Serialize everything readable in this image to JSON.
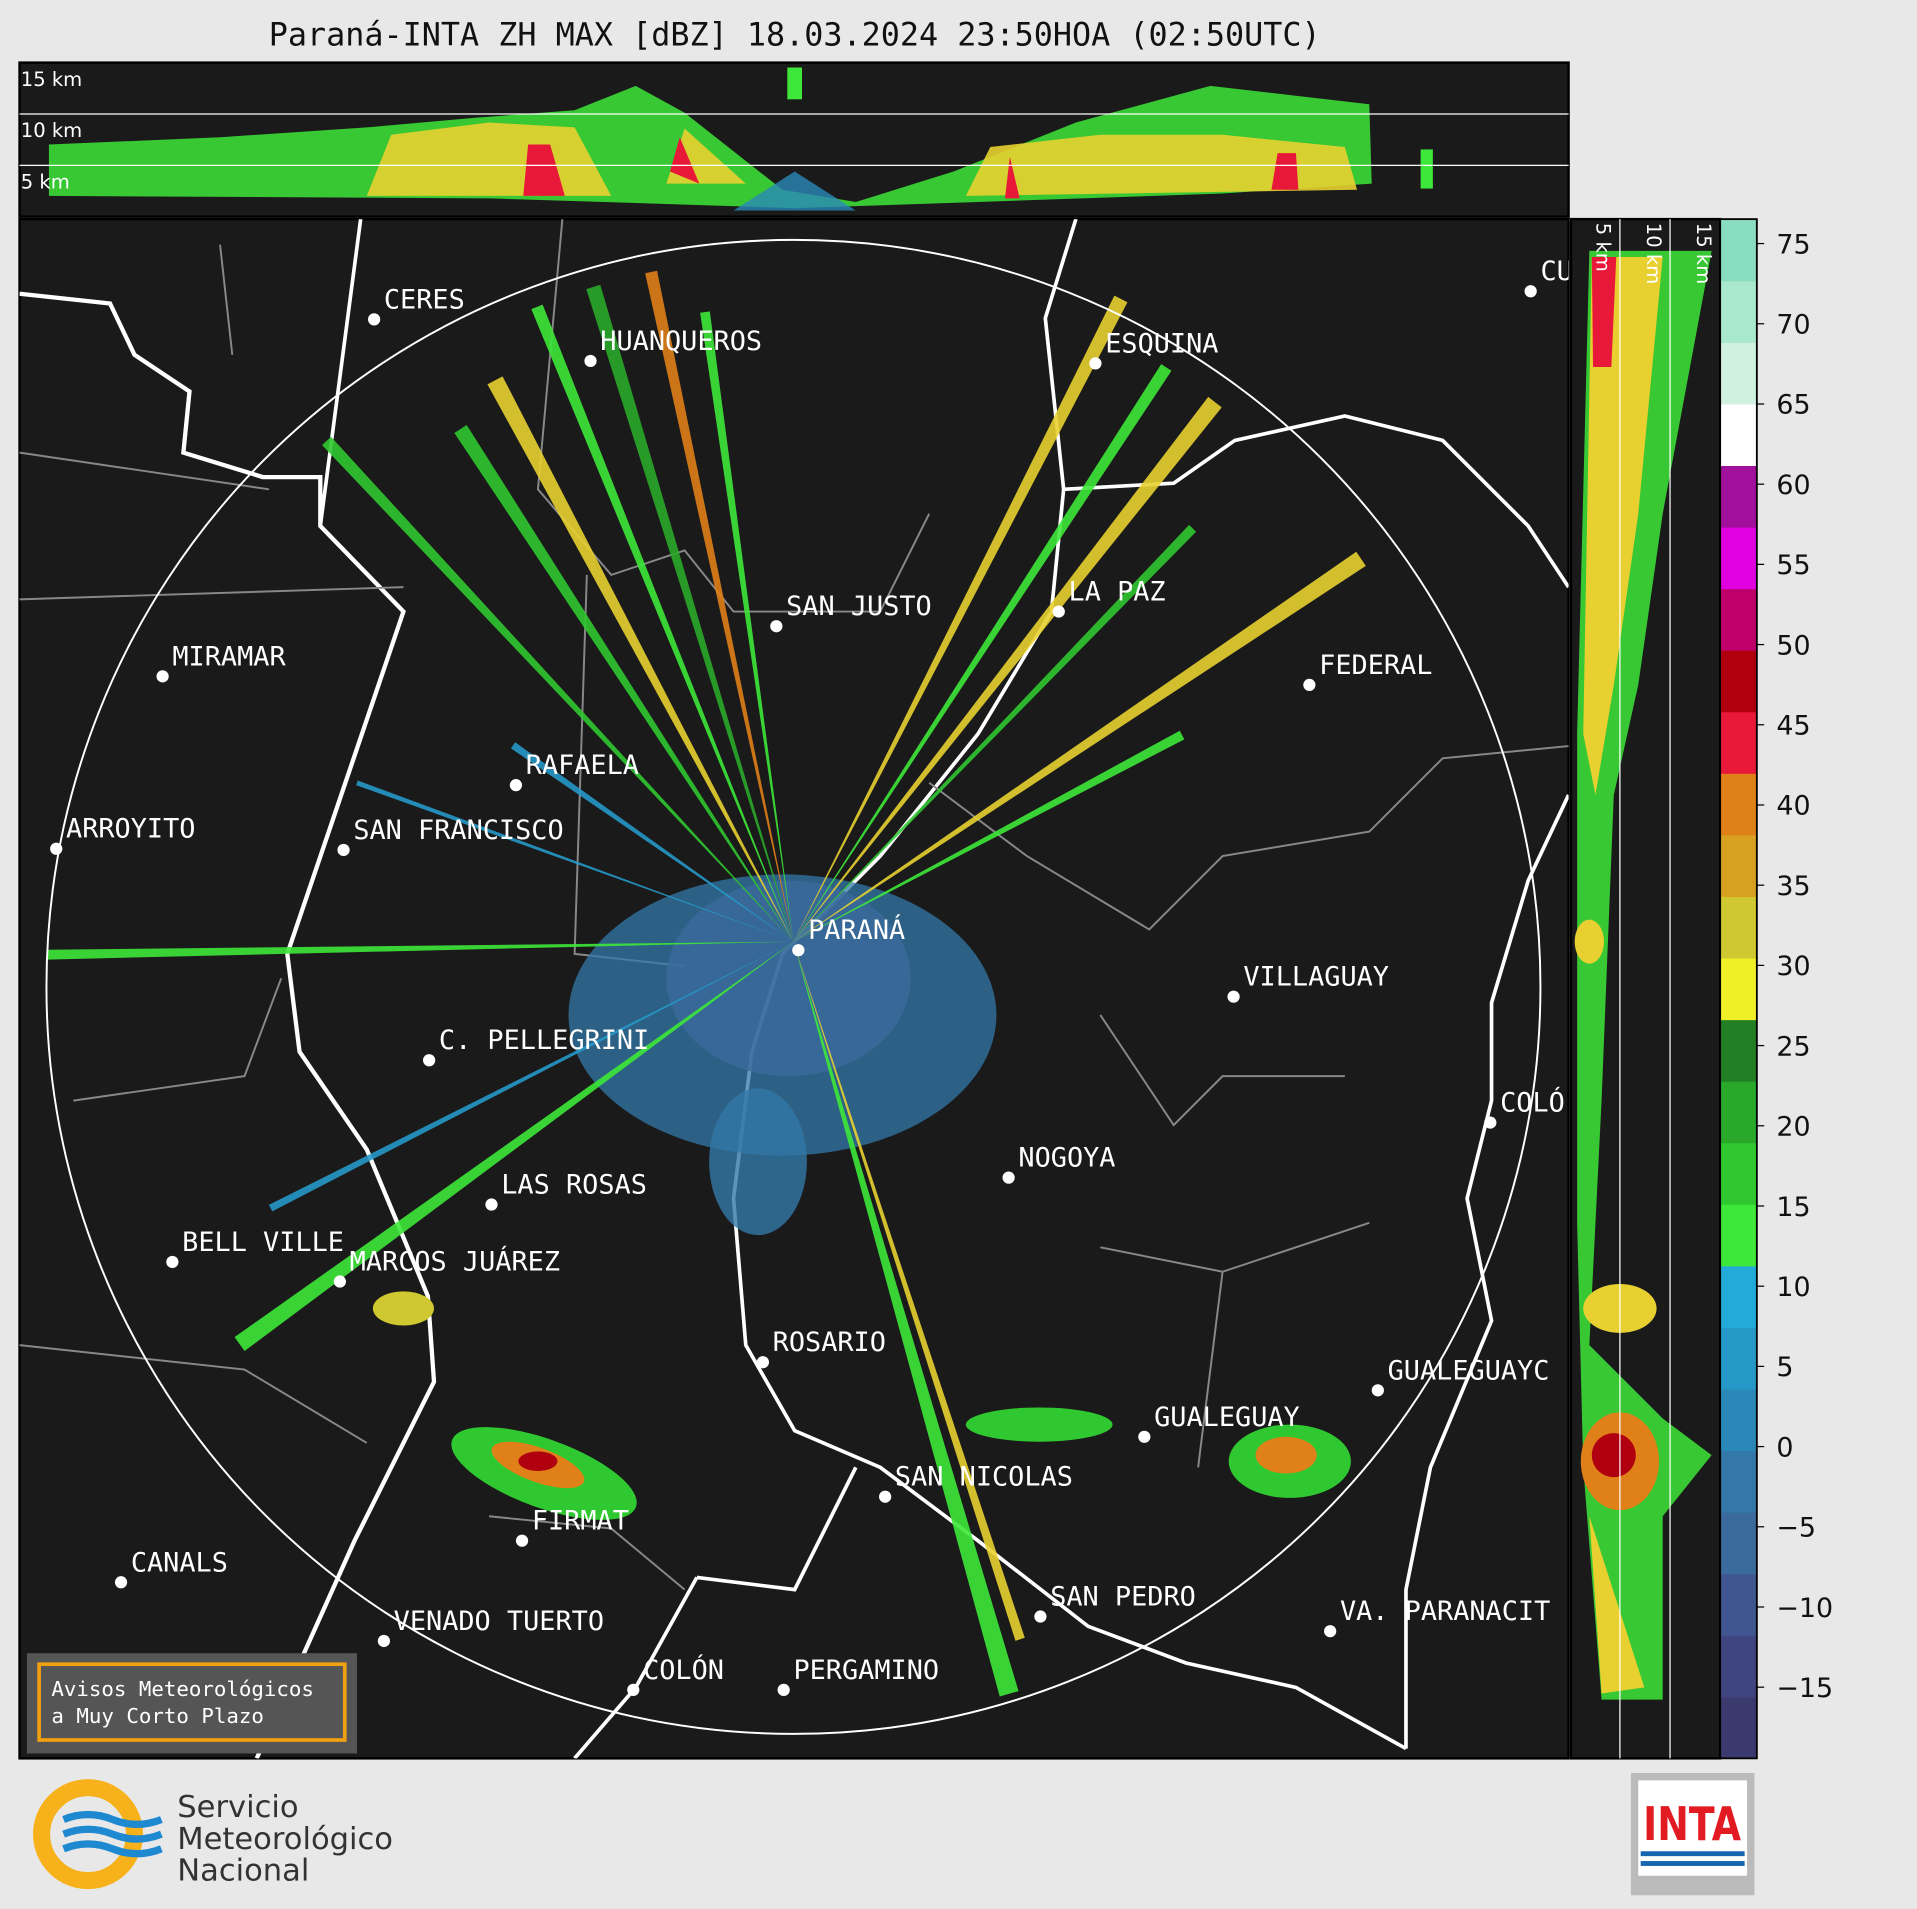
{
  "header": {
    "title": "Paraná-INTA ZH MAX [dBZ] 18.03.2024 23:50HOA (02:50UTC)"
  },
  "top_panel": {
    "height_labels": [
      "15 km",
      "10 km",
      "5 km"
    ]
  },
  "right_panel": {
    "height_labels": [
      "5 km",
      "10 km",
      "15 km"
    ]
  },
  "colorbar": {
    "ticks": [
      "75",
      "70",
      "65",
      "60",
      "55",
      "50",
      "45",
      "40",
      "35",
      "30",
      "25",
      "20",
      "15",
      "10",
      "5",
      "0",
      "−5",
      "−10",
      "−15"
    ],
    "colors": [
      "#3a3a6e",
      "#3f4580",
      "#3f5690",
      "#3b6a9c",
      "#3378a8",
      "#2a88b8",
      "#2698c8",
      "#22aad8",
      "#3ee83a",
      "#30c830",
      "#2aa82a",
      "#237f23",
      "#f0f028",
      "#d0c830",
      "#d8a020",
      "#e08018",
      "#e81838",
      "#b00010",
      "#c0006a",
      "#e000e0",
      "#a0109a",
      "#ffffff",
      "#d0f0e0",
      "#a8e8cc",
      "#88dcc0"
    ]
  },
  "cities": [
    {
      "label": "CERES"
    },
    {
      "label": "HUANQUEROS"
    },
    {
      "label": "ESQUINA"
    },
    {
      "label": "CU"
    },
    {
      "label": "SAN JUSTO"
    },
    {
      "label": "LA PAZ"
    },
    {
      "label": "FEDERAL"
    },
    {
      "label": "MIRAMAR"
    },
    {
      "label": "RAFAELA"
    },
    {
      "label": "ARROYITO"
    },
    {
      "label": "SAN FRANCISCO"
    },
    {
      "label": "PARANÁ"
    },
    {
      "label": "VILLAGUAY"
    },
    {
      "label": "C. PELLEGRINI"
    },
    {
      "label": "COLÓ"
    },
    {
      "label": "NOGOYA"
    },
    {
      "label": "LAS ROSAS"
    },
    {
      "label": "BELL VILLE"
    },
    {
      "label": "MARCOS JUÁREZ"
    },
    {
      "label": "ROSARIO"
    },
    {
      "label": "GUALEGUAYC"
    },
    {
      "label": "GUALEGUAY"
    },
    {
      "label": "SAN NICOLAS"
    },
    {
      "label": "FIRMAT"
    },
    {
      "label": "CANALS"
    },
    {
      "label": "SAN PEDRO"
    },
    {
      "label": "VENADO TUERTO"
    },
    {
      "label": "VA. PARANACIT"
    },
    {
      "label": "COLÓN"
    },
    {
      "label": "PERGAMINO"
    }
  ],
  "notice": {
    "lines": [
      "Avisos Meteorológicos",
      "a Muy Corto Plazo"
    ]
  },
  "footer": {
    "smn_logo": {
      "lines": [
        "Servicio",
        "Meteorológico",
        "Nacional"
      ]
    },
    "inta_logo": {
      "text": "INTA"
    }
  }
}
